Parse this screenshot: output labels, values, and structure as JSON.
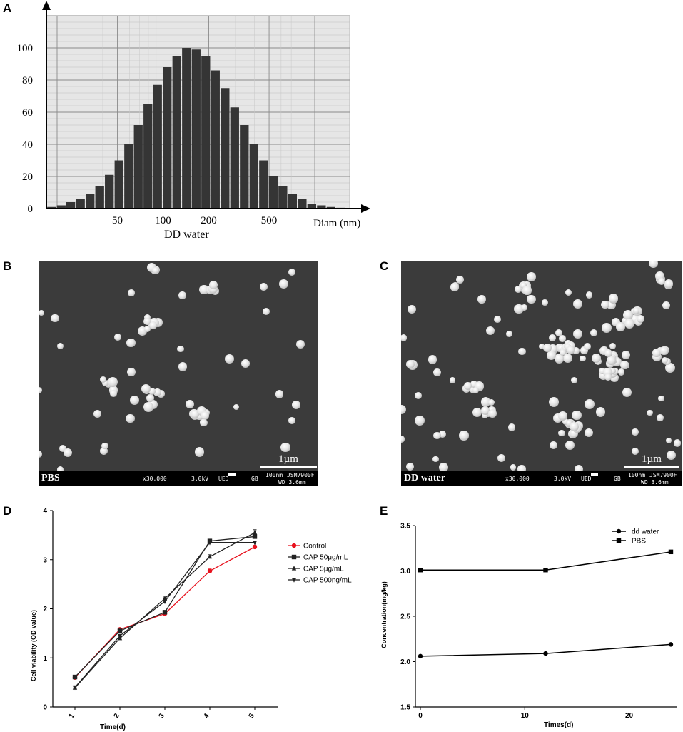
{
  "panels": {
    "a": {
      "letter": "A"
    },
    "b": {
      "letter": "B"
    },
    "c": {
      "letter": "C"
    },
    "d": {
      "letter": "D"
    },
    "e": {
      "letter": "E"
    }
  },
  "sem_b": {
    "label": "PBS",
    "scale_label": "1µm",
    "magnification": "x30,000",
    "voltage": "3.0kV",
    "detector": "UED",
    "mode": "GB",
    "marker_label": "100nm",
    "instrument": "JSM7900F",
    "wd": "WD 3.6mm"
  },
  "sem_c": {
    "label": "DD water",
    "scale_label": "1µm",
    "magnification": "x30,000",
    "voltage": "3.0kV",
    "detector": "UED",
    "mode": "GB",
    "marker_label": "100nm",
    "instrument": "JSM7900F",
    "wd": "WD 3.6mm"
  },
  "chart_data": [
    {
      "id": "A",
      "type": "bar",
      "xlabel": "DD water",
      "axis_unit_label": "Diam (nm)",
      "x_scale": "log",
      "xlim": [
        17,
        1700
      ],
      "ylim": [
        0,
        120
      ],
      "yticks": [
        0,
        20,
        40,
        60,
        80,
        100
      ],
      "xticks": [
        {
          "value": 50,
          "label": "50"
        },
        {
          "value": 100,
          "label": "100"
        },
        {
          "value": 200,
          "label": "200"
        },
        {
          "value": 500,
          "label": "500"
        }
      ],
      "grid": true,
      "bins_center_nm": [
        18.4,
        21.3,
        24.6,
        28.5,
        33.0,
        38.2,
        44.2,
        51.2,
        59.3,
        68.6,
        79.4,
        91.9,
        106.4,
        123.2,
        142.6,
        165.1,
        191.1,
        221.2,
        256.1,
        296.4,
        343.1,
        397.2,
        459.8,
        532.3,
        616.2,
        713.3,
        825.7,
        955.9,
        1106.5,
        1280.9,
        1482.8
      ],
      "values": [
        1,
        2,
        4,
        6,
        9,
        14,
        21,
        30,
        40,
        52,
        65,
        77,
        88,
        95,
        100,
        99,
        95,
        86,
        75,
        63,
        52,
        40,
        30,
        20,
        14,
        9,
        6,
        3,
        2,
        1,
        0.5
      ]
    },
    {
      "id": "D",
      "type": "line",
      "xlabel": "Time(d)",
      "ylabel": "Cell viability (OD value)",
      "categories": [
        "1",
        "2",
        "3",
        "4",
        "5"
      ],
      "x": [
        1,
        2,
        3,
        4,
        5
      ],
      "ylim": [
        0,
        4
      ],
      "yticks": [
        0,
        1,
        2,
        3,
        4
      ],
      "legend": "right",
      "series": [
        {
          "name": "Control",
          "color": "#e8121e",
          "marker": "circle",
          "values": [
            0.6,
            1.58,
            1.9,
            2.77,
            3.26
          ],
          "errors": [
            0.02,
            0.02,
            0.02,
            0.04,
            0.03
          ]
        },
        {
          "name": "CAP 50μg/mL",
          "color": "#222222",
          "marker": "square",
          "values": [
            0.61,
            1.55,
            1.93,
            3.38,
            3.47
          ],
          "errors": [
            0.02,
            0.02,
            0.02,
            0.03,
            0.04
          ]
        },
        {
          "name": "CAP 5μg/mL",
          "color": "#222222",
          "marker": "triangle-up",
          "values": [
            0.39,
            1.4,
            2.21,
            3.06,
            3.55
          ],
          "errors": [
            0.02,
            0.02,
            0.03,
            0.04,
            0.06
          ]
        },
        {
          "name": "CAP 500ng/mL",
          "color": "#222222",
          "marker": "triangle-down",
          "values": [
            0.4,
            1.45,
            2.15,
            3.35,
            3.35
          ],
          "errors": [
            0.02,
            0.02,
            0.02,
            0.03,
            0.03
          ]
        }
      ]
    },
    {
      "id": "E",
      "type": "line",
      "xlabel": "Times(d)",
      "ylabel": "Concentration(mg/kg)",
      "x": [
        0,
        12,
        24
      ],
      "xlim": [
        -0.5,
        25.5
      ],
      "xticks": [
        0,
        10,
        20
      ],
      "ylim": [
        1.5,
        3.5
      ],
      "yticks": [
        1.5,
        2.0,
        2.5,
        3.0,
        3.5
      ],
      "ytick_labels": [
        "1.5",
        "2.0",
        "2.5",
        "3.0",
        "3.5"
      ],
      "legend": "top-right",
      "series": [
        {
          "name": "dd water",
          "marker": "circle",
          "values": [
            2.06,
            2.09,
            2.19
          ]
        },
        {
          "name": "PBS",
          "marker": "square",
          "values": [
            3.01,
            3.01,
            3.21
          ]
        }
      ]
    }
  ]
}
